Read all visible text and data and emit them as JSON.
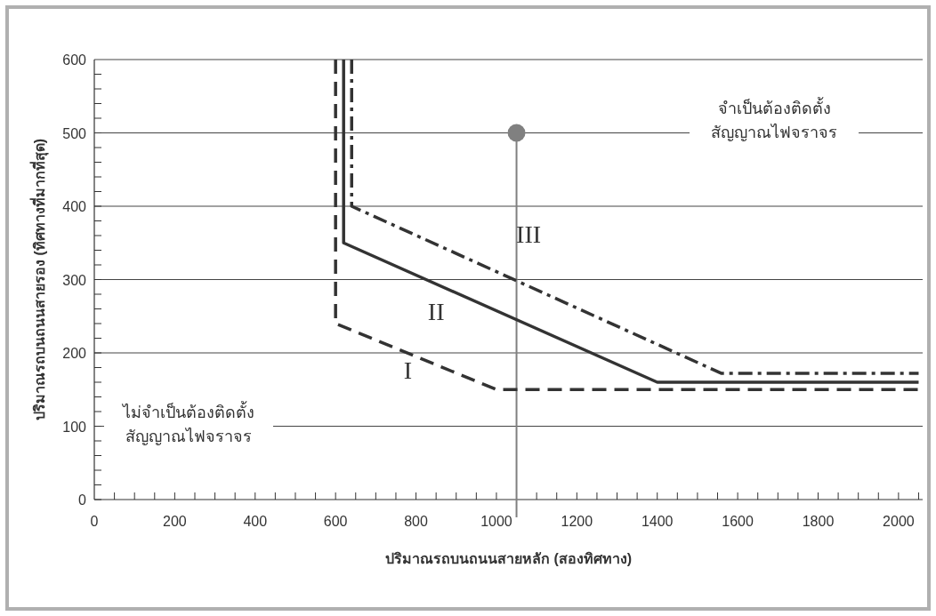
{
  "chart_data": {
    "type": "line",
    "xlabel": "ปริมาณรถบนถนนสายหลัก (สองทิศทาง)",
    "ylabel": "ปริมาณรถบนถนนสายรอง (ทิศทางที่มากที่สุด)",
    "xlim": [
      0,
      2060
    ],
    "ylim": [
      0,
      600
    ],
    "xticks": [
      0,
      200,
      400,
      600,
      800,
      1000,
      1200,
      1400,
      1600,
      1800,
      2000
    ],
    "yticks": [
      0,
      100,
      200,
      300,
      400,
      500,
      600
    ],
    "grid": "y",
    "series": [
      {
        "color": "#333333",
        "line_style": "dashed",
        "x": [
          600,
          600,
          1000,
          2050
        ],
        "values": [
          600,
          240,
          150,
          150
        ]
      },
      {
        "color": "#333333",
        "line_style": "solid",
        "x": [
          620,
          620,
          1400,
          2050
        ],
        "values": [
          600,
          350,
          160,
          160
        ]
      },
      {
        "color": "#333333",
        "line_style": "dashdot",
        "x": [
          640,
          640,
          1560,
          2050
        ],
        "values": [
          600,
          400,
          172,
          172
        ]
      },
      {
        "type": "scatter",
        "color": "#808080",
        "marker": "circle",
        "x": [
          1050
        ],
        "values": [
          500
        ]
      }
    ],
    "ref_lines": [
      {
        "axis": "x",
        "value": 1050,
        "color": "#808080"
      }
    ],
    "annotations": [
      "I",
      "II",
      "III",
      "จำเป็นต้องติดตั้ง\nสัญญาณไฟจราจร",
      "ไม่จำเป็นต้องติดตั้ง\nสัญญาณไฟจราจร"
    ]
  }
}
